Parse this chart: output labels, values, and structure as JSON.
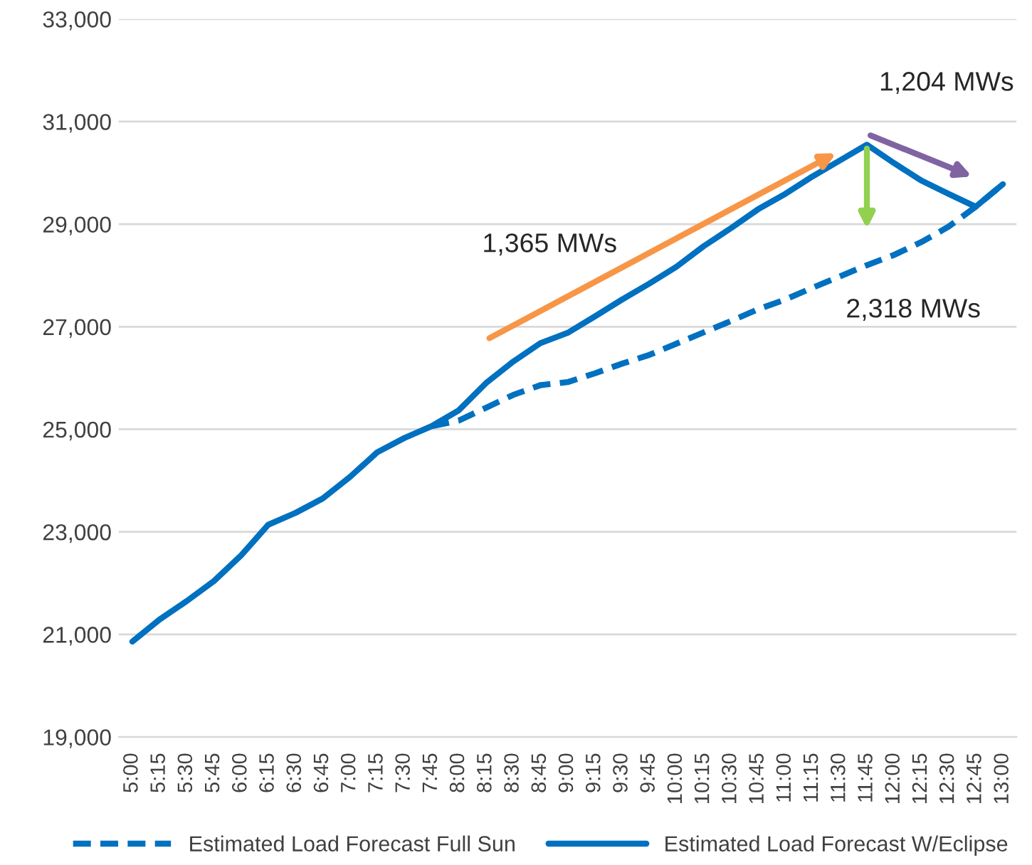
{
  "chart_data": {
    "type": "line",
    "categories": [
      "5:00",
      "5:15",
      "5:30",
      "5:45",
      "6:00",
      "6:15",
      "6:30",
      "6:45",
      "7:00",
      "7:15",
      "7:30",
      "7:45",
      "8:00",
      "8:15",
      "8:30",
      "8:45",
      "9:00",
      "9:15",
      "9:30",
      "9:45",
      "10:00",
      "10:15",
      "10:30",
      "10:45",
      "11:00",
      "11:15",
      "11:30",
      "11:45",
      "12:00",
      "12:15",
      "12:30",
      "12:45",
      "13:00"
    ],
    "series": [
      {
        "name": "Estimated Load Forecast Full Sun",
        "color": "#0070c0",
        "line_style": "dashed",
        "values": [
          null,
          null,
          null,
          null,
          null,
          null,
          null,
          null,
          null,
          null,
          null,
          25060,
          25170,
          25420,
          25670,
          25860,
          25920,
          26090,
          26280,
          26450,
          26670,
          26890,
          27110,
          27340,
          27530,
          27760,
          27980,
          28200,
          28400,
          28650,
          28950,
          29340,
          29780
        ]
      },
      {
        "name": "Estimated Load Forecast W/Eclipse",
        "color": "#0070c0",
        "line_style": "solid",
        "values": [
          20860,
          21290,
          21650,
          22040,
          22540,
          23140,
          23370,
          23650,
          24070,
          24550,
          24830,
          25060,
          25370,
          25900,
          26320,
          26680,
          26880,
          27200,
          27530,
          27840,
          28170,
          28570,
          28920,
          29290,
          29590,
          29930,
          30240,
          30550,
          30190,
          29850,
          29590,
          29340,
          29780
        ]
      }
    ],
    "ylim": [
      19000,
      33000
    ],
    "yticks": [
      {
        "value": 19000,
        "label": "19,000"
      },
      {
        "value": 21000,
        "label": "21,000"
      },
      {
        "value": 23000,
        "label": "23,000"
      },
      {
        "value": 25000,
        "label": "25,000"
      },
      {
        "value": 27000,
        "label": "27,000"
      },
      {
        "value": 29000,
        "label": "29,000"
      },
      {
        "value": 31000,
        "label": "31,000"
      },
      {
        "value": 33000,
        "label": "33,000"
      }
    ],
    "annotations": [
      "1,365 MWs",
      "1,204 MWs",
      "2,318 MWs"
    ],
    "grid": "y",
    "legend": "bottom",
    "marker": "none"
  }
}
